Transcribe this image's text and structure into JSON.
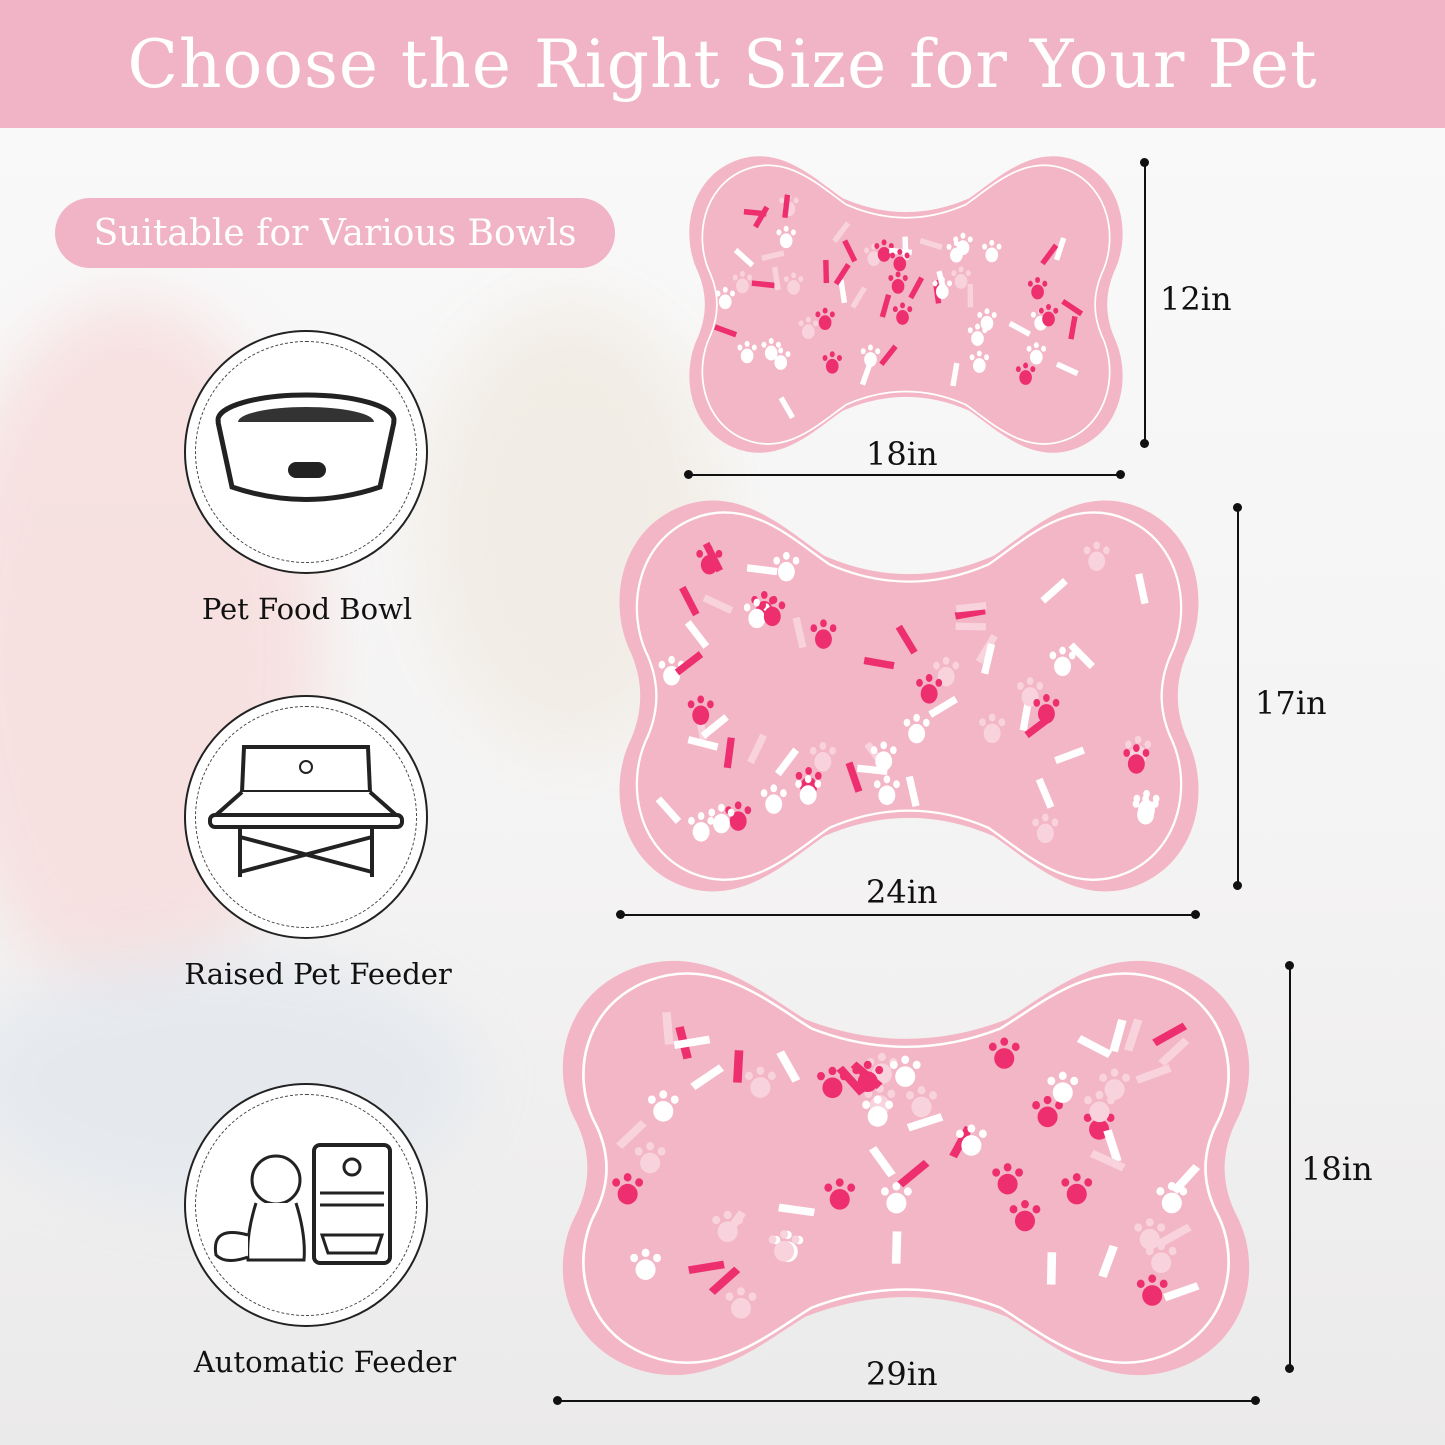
{
  "header": {
    "title": "Choose the Right Size for Your Pet"
  },
  "badge": {
    "text": "Suitable for Various Bowls"
  },
  "bowl_types": [
    {
      "label": "Pet Food Bowl",
      "icon": "pet-food-bowl-icon"
    },
    {
      "label": "Raised Pet Feeder",
      "icon": "raised-feeder-icon"
    },
    {
      "label": "Automatic Feeder",
      "icon": "automatic-feeder-icon"
    }
  ],
  "sizes": [
    {
      "width": "18in",
      "height": "12in"
    },
    {
      "width": "24in",
      "height": "17in"
    },
    {
      "width": "29in",
      "height": "18in"
    }
  ],
  "colors": {
    "brand_pink": "#f0b4c6",
    "mat_pink": "#f3b6c6",
    "accent_pink": "#ee2f6f"
  }
}
